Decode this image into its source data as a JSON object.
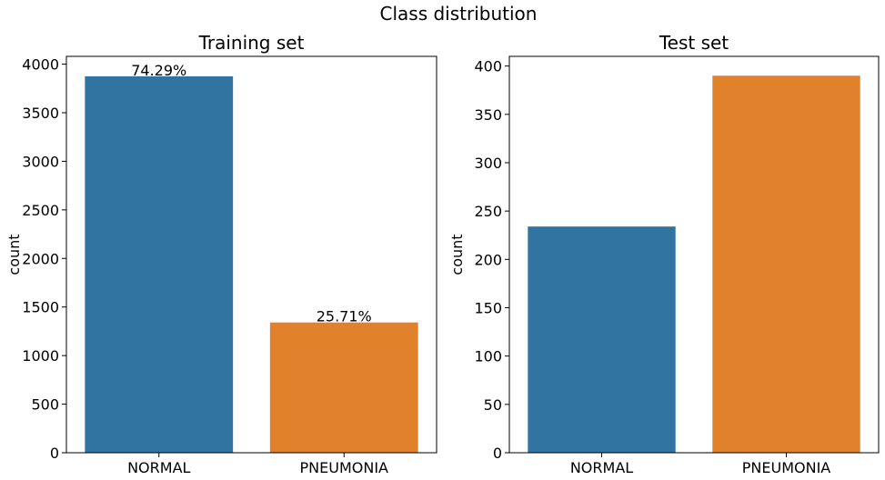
{
  "figure": {
    "suptitle": "Class distribution"
  },
  "chart_data": [
    {
      "type": "bar",
      "title": "Training set",
      "xlabel": "",
      "ylabel": "count",
      "categories": [
        "NORMAL",
        "PNEUMONIA"
      ],
      "values": [
        3875,
        1341
      ],
      "colors": [
        "#3274a1",
        "#e1812c"
      ],
      "data_labels": [
        "74.29%",
        "25.71%"
      ],
      "ylim": [
        0,
        4080
      ],
      "yticks": [
        0,
        500,
        1000,
        1500,
        2000,
        2500,
        3000,
        3500,
        4000
      ],
      "grid": false,
      "legend": "none"
    },
    {
      "type": "bar",
      "title": "Test set",
      "xlabel": "",
      "ylabel": "count",
      "categories": [
        "NORMAL",
        "PNEUMONIA"
      ],
      "values": [
        234,
        390
      ],
      "colors": [
        "#3274a1",
        "#e1812c"
      ],
      "data_labels": [],
      "ylim": [
        0,
        410
      ],
      "yticks": [
        0,
        50,
        100,
        150,
        200,
        250,
        300,
        350,
        400
      ],
      "grid": false,
      "legend": "none"
    }
  ]
}
